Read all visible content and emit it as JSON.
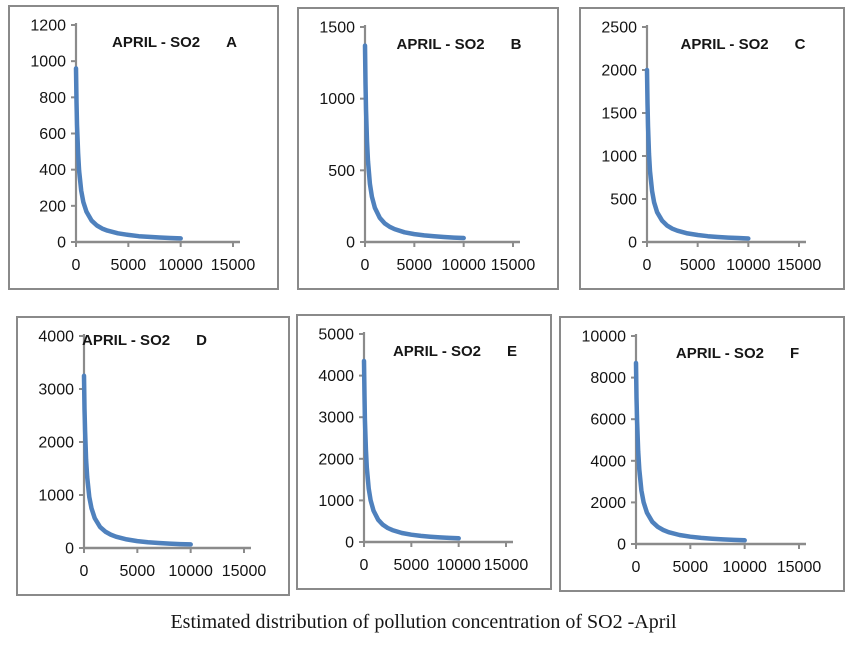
{
  "page": {
    "caption": "Estimated distribution of pollution concentration of SO2 -April",
    "background": "#ffffff"
  },
  "style": {
    "curve_color": "#4f81bd",
    "axis_color": "#8b8b8b",
    "border_color": "#8a8a8a",
    "title_color": "#161616",
    "tick_label_color": "#141414"
  },
  "chart_data": [
    {
      "id": "A",
      "type": "scatter",
      "title": "APRIL - SO2",
      "panel_letter": "A",
      "xlabel": "",
      "ylabel": "",
      "grid": false,
      "legend": "none",
      "title_align": "center",
      "xlim": [
        0,
        15000
      ],
      "ylim": [
        0,
        1200
      ],
      "xticks": [
        0,
        5000,
        10000,
        15000
      ],
      "yticks": [
        0,
        200,
        400,
        600,
        800,
        1000,
        1200
      ],
      "points": [
        [
          0,
          960
        ],
        [
          50,
          775
        ],
        [
          100,
          650
        ],
        [
          200,
          492
        ],
        [
          300,
          395
        ],
        [
          500,
          284
        ],
        [
          700,
          222
        ],
        [
          1000,
          167
        ],
        [
          1500,
          118
        ],
        [
          2000,
          91
        ],
        [
          2500,
          74
        ],
        [
          3000,
          63
        ],
        [
          4000,
          48
        ],
        [
          5000,
          39
        ],
        [
          6000,
          32
        ],
        [
          7000,
          28
        ],
        [
          8000,
          25
        ],
        [
          9000,
          22
        ],
        [
          10000,
          20
        ]
      ]
    },
    {
      "id": "B",
      "type": "scatter",
      "title": "APRIL - SO2",
      "panel_letter": "B",
      "xlabel": "",
      "ylabel": "",
      "grid": false,
      "legend": "none",
      "title_align": "center",
      "xlim": [
        0,
        15000
      ],
      "ylim": [
        0,
        1500
      ],
      "xticks": [
        0,
        5000,
        10000,
        15000
      ],
      "yticks": [
        0,
        500,
        1000,
        1500
      ],
      "points": [
        [
          0,
          1370
        ],
        [
          50,
          1107
        ],
        [
          100,
          928
        ],
        [
          200,
          702
        ],
        [
          300,
          564
        ],
        [
          500,
          405
        ],
        [
          700,
          316
        ],
        [
          1000,
          238
        ],
        [
          1500,
          168
        ],
        [
          2000,
          130
        ],
        [
          2500,
          106
        ],
        [
          3000,
          90
        ],
        [
          4000,
          68
        ],
        [
          5000,
          55
        ],
        [
          6000,
          46
        ],
        [
          7000,
          40
        ],
        [
          8000,
          35
        ],
        [
          9000,
          31
        ],
        [
          10000,
          28
        ]
      ]
    },
    {
      "id": "C",
      "type": "scatter",
      "title": "APRIL - SO2",
      "panel_letter": "C",
      "xlabel": "",
      "ylabel": "",
      "grid": false,
      "legend": "none",
      "title_align": "center",
      "xlim": [
        0,
        15000
      ],
      "ylim": [
        0,
        2500
      ],
      "xticks": [
        0,
        5000,
        10000,
        15000
      ],
      "yticks": [
        0,
        500,
        1000,
        1500,
        2000,
        2500
      ],
      "points": [
        [
          0,
          2000
        ],
        [
          50,
          1615
        ],
        [
          100,
          1355
        ],
        [
          200,
          1024
        ],
        [
          300,
          824
        ],
        [
          500,
          592
        ],
        [
          700,
          462
        ],
        [
          1000,
          347
        ],
        [
          1500,
          246
        ],
        [
          2000,
          190
        ],
        [
          2500,
          155
        ],
        [
          3000,
          131
        ],
        [
          4000,
          100
        ],
        [
          5000,
          81
        ],
        [
          6000,
          68
        ],
        [
          7000,
          58
        ],
        [
          8000,
          51
        ],
        [
          9000,
          46
        ],
        [
          10000,
          41
        ]
      ]
    },
    {
      "id": "D",
      "type": "scatter",
      "title": "APRIL - SO2",
      "panel_letter": "D",
      "xlabel": "",
      "ylabel": "",
      "grid": false,
      "legend": "none",
      "title_align": "left",
      "xlim": [
        0,
        15000
      ],
      "ylim": [
        0,
        4000
      ],
      "xticks": [
        0,
        5000,
        10000,
        15000
      ],
      "yticks": [
        0,
        1000,
        2000,
        3000,
        4000
      ],
      "points": [
        [
          0,
          3250
        ],
        [
          50,
          2625
        ],
        [
          100,
          2202
        ],
        [
          200,
          1665
        ],
        [
          300,
          1338
        ],
        [
          500,
          961
        ],
        [
          700,
          750
        ],
        [
          1000,
          564
        ],
        [
          1500,
          399
        ],
        [
          2000,
          309
        ],
        [
          2500,
          252
        ],
        [
          3000,
          213
        ],
        [
          4000,
          162
        ],
        [
          5000,
          131
        ],
        [
          6000,
          110
        ],
        [
          7000,
          95
        ],
        [
          8000,
          83
        ],
        [
          9000,
          74
        ],
        [
          10000,
          67
        ]
      ]
    },
    {
      "id": "E",
      "type": "scatter",
      "title": "APRIL - SO2",
      "panel_letter": "E",
      "xlabel": "",
      "ylabel": "",
      "grid": false,
      "legend": "none",
      "title_align": "center",
      "xlim": [
        0,
        15000
      ],
      "ylim": [
        0,
        5000
      ],
      "xticks": [
        0,
        5000,
        10000,
        15000
      ],
      "yticks": [
        0,
        1000,
        2000,
        3000,
        4000,
        5000
      ],
      "points": [
        [
          0,
          4350
        ],
        [
          50,
          3513
        ],
        [
          100,
          2947
        ],
        [
          200,
          2228
        ],
        [
          300,
          1791
        ],
        [
          500,
          1287
        ],
        [
          700,
          1004
        ],
        [
          1000,
          755
        ],
        [
          1500,
          534
        ],
        [
          2000,
          413
        ],
        [
          2500,
          337
        ],
        [
          3000,
          285
        ],
        [
          4000,
          217
        ],
        [
          5000,
          175
        ],
        [
          6000,
          147
        ],
        [
          7000,
          127
        ],
        [
          8000,
          111
        ],
        [
          9000,
          99
        ],
        [
          10000,
          89
        ]
      ]
    },
    {
      "id": "F",
      "type": "scatter",
      "title": "APRIL - SO2",
      "panel_letter": "F",
      "xlabel": "",
      "ylabel": "",
      "grid": false,
      "legend": "none",
      "title_align": "center",
      "xlim": [
        0,
        15000
      ],
      "ylim": [
        0,
        10000
      ],
      "xticks": [
        0,
        5000,
        10000,
        15000
      ],
      "yticks": [
        0,
        2000,
        4000,
        6000,
        8000,
        10000
      ],
      "points": [
        [
          0,
          8700
        ],
        [
          50,
          7027
        ],
        [
          100,
          5894
        ],
        [
          200,
          4456
        ],
        [
          300,
          3582
        ],
        [
          500,
          2573
        ],
        [
          700,
          2008
        ],
        [
          1000,
          1510
        ],
        [
          1500,
          1068
        ],
        [
          2000,
          827
        ],
        [
          2500,
          674
        ],
        [
          3000,
          569
        ],
        [
          4000,
          434
        ],
        [
          5000,
          351
        ],
        [
          6000,
          294
        ],
        [
          7000,
          253
        ],
        [
          8000,
          223
        ],
        [
          9000,
          198
        ],
        [
          10000,
          179
        ]
      ]
    }
  ]
}
